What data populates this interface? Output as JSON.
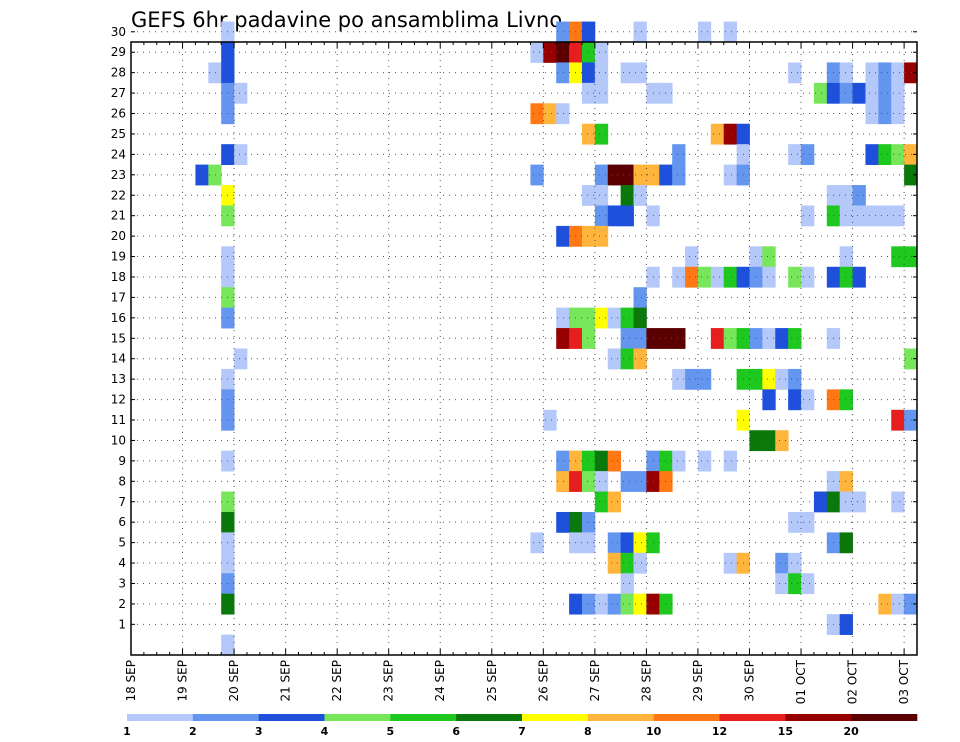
{
  "chart_data": {
    "type": "heatmap",
    "title": "GEFS 6hr padavine po ansamblima Livno",
    "x_tick_labels": [
      "18 SEP",
      "19 SEP",
      "20 SEP",
      "21 SEP",
      "22 SEP",
      "23 SEP",
      "24 SEP",
      "25 SEP",
      "26 SEP",
      "27 SEP",
      "28 SEP",
      "29 SEP",
      "30 SEP",
      "01 OCT",
      "02 OCT",
      "03 OCT"
    ],
    "y_tick_labels": [
      "1",
      "2",
      "3",
      "4",
      "5",
      "6",
      "7",
      "8",
      "9",
      "10",
      "11",
      "12",
      "13",
      "14",
      "15",
      "16",
      "17",
      "18",
      "19",
      "20",
      "21",
      "22",
      "23",
      "24",
      "25",
      "26",
      "27",
      "28",
      "29",
      "30"
    ],
    "x_range_steps": [
      0,
      61
    ],
    "y_range_members": [
      0,
      30
    ],
    "grid": true,
    "colorbar": {
      "labels": [
        "1",
        "2",
        "3",
        "4",
        "5",
        "6",
        "7",
        "8",
        "10",
        "12",
        "15",
        "20"
      ],
      "colors": [
        "#b4c8fa",
        "#6496f0",
        "#1e50dc",
        "#78e65a",
        "#1ec81e",
        "#0a780a",
        "#ffff00",
        "#ffb43c",
        "#ff7814",
        "#e61e1e",
        "#960000",
        "#5a0000"
      ]
    },
    "cells_note": "each entry: [member, step_index_from_18_SEP_00z_in_6h_steps, color_class_0_to_11]",
    "cells": [
      [
        30,
        7,
        0
      ],
      [
        29,
        7,
        2
      ],
      [
        28,
        6,
        0
      ],
      [
        28,
        7,
        2
      ],
      [
        27,
        7,
        1
      ],
      [
        27,
        8,
        0
      ],
      [
        26,
        7,
        1
      ],
      [
        24,
        7,
        2
      ],
      [
        24,
        8,
        0
      ],
      [
        23,
        5,
        2
      ],
      [
        23,
        6,
        3
      ],
      [
        22,
        7,
        6
      ],
      [
        21,
        7,
        3
      ],
      [
        19,
        7,
        0
      ],
      [
        18,
        7,
        0
      ],
      [
        17,
        7,
        3
      ],
      [
        16,
        7,
        1
      ],
      [
        14,
        8,
        0
      ],
      [
        13,
        7,
        0
      ],
      [
        12,
        7,
        1
      ],
      [
        11,
        7,
        1
      ],
      [
        9,
        7,
        0
      ],
      [
        7,
        7,
        3
      ],
      [
        6,
        7,
        5
      ],
      [
        5,
        7,
        0
      ],
      [
        4,
        7,
        0
      ],
      [
        3,
        7,
        1
      ],
      [
        2,
        7,
        5
      ],
      [
        0,
        7,
        0
      ],
      [
        30,
        33,
        1
      ],
      [
        30,
        34,
        8
      ],
      [
        30,
        35,
        2
      ],
      [
        30,
        39,
        0
      ],
      [
        30,
        44,
        0
      ],
      [
        30,
        46,
        0
      ],
      [
        29,
        31,
        0
      ],
      [
        29,
        32,
        10
      ],
      [
        29,
        33,
        11
      ],
      [
        29,
        34,
        9
      ],
      [
        29,
        35,
        4
      ],
      [
        29,
        36,
        0
      ],
      [
        28,
        33,
        1
      ],
      [
        28,
        34,
        6
      ],
      [
        28,
        35,
        2
      ],
      [
        28,
        36,
        0
      ],
      [
        28,
        38,
        0
      ],
      [
        28,
        39,
        0
      ],
      [
        28,
        51,
        0
      ],
      [
        28,
        54,
        1
      ],
      [
        28,
        55,
        0
      ],
      [
        28,
        57,
        0
      ],
      [
        28,
        58,
        1
      ],
      [
        28,
        59,
        0
      ],
      [
        28,
        60,
        10
      ],
      [
        27,
        35,
        0
      ],
      [
        27,
        36,
        0
      ],
      [
        27,
        40,
        0
      ],
      [
        27,
        41,
        0
      ],
      [
        27,
        53,
        3
      ],
      [
        27,
        54,
        2
      ],
      [
        27,
        55,
        1
      ],
      [
        27,
        56,
        2
      ],
      [
        27,
        57,
        0
      ],
      [
        27,
        58,
        1
      ],
      [
        27,
        59,
        0
      ],
      [
        26,
        31,
        8
      ],
      [
        26,
        32,
        7
      ],
      [
        26,
        33,
        0
      ],
      [
        26,
        57,
        0
      ],
      [
        26,
        58,
        1
      ],
      [
        26,
        59,
        0
      ],
      [
        25,
        35,
        7
      ],
      [
        25,
        36,
        4
      ],
      [
        25,
        45,
        7
      ],
      [
        25,
        46,
        10
      ],
      [
        25,
        47,
        2
      ],
      [
        24,
        42,
        1
      ],
      [
        24,
        47,
        0
      ],
      [
        24,
        51,
        0
      ],
      [
        24,
        52,
        1
      ],
      [
        24,
        57,
        2
      ],
      [
        24,
        58,
        4
      ],
      [
        24,
        59,
        3
      ],
      [
        24,
        60,
        7
      ],
      [
        23,
        31,
        1
      ],
      [
        23,
        36,
        1
      ],
      [
        23,
        37,
        11
      ],
      [
        23,
        38,
        11
      ],
      [
        23,
        39,
        7
      ],
      [
        23,
        40,
        7
      ],
      [
        23,
        41,
        2
      ],
      [
        23,
        42,
        1
      ],
      [
        23,
        46,
        0
      ],
      [
        23,
        47,
        1
      ],
      [
        23,
        60,
        5
      ],
      [
        22,
        35,
        0
      ],
      [
        22,
        36,
        0
      ],
      [
        22,
        38,
        5
      ],
      [
        22,
        39,
        0
      ],
      [
        22,
        54,
        0
      ],
      [
        22,
        55,
        0
      ],
      [
        22,
        56,
        1
      ],
      [
        21,
        36,
        1
      ],
      [
        21,
        37,
        2
      ],
      [
        21,
        38,
        2
      ],
      [
        21,
        40,
        0
      ],
      [
        21,
        52,
        0
      ],
      [
        21,
        54,
        4
      ],
      [
        21,
        55,
        0
      ],
      [
        21,
        56,
        0
      ],
      [
        21,
        57,
        0
      ],
      [
        21,
        58,
        0
      ],
      [
        21,
        59,
        0
      ],
      [
        20,
        33,
        2
      ],
      [
        20,
        34,
        8
      ],
      [
        20,
        35,
        7
      ],
      [
        20,
        36,
        7
      ],
      [
        19,
        43,
        0
      ],
      [
        19,
        48,
        0
      ],
      [
        19,
        49,
        3
      ],
      [
        19,
        55,
        0
      ],
      [
        19,
        59,
        4
      ],
      [
        19,
        60,
        4
      ],
      [
        18,
        40,
        0
      ],
      [
        18,
        42,
        0
      ],
      [
        18,
        43,
        8
      ],
      [
        18,
        44,
        3
      ],
      [
        18,
        45,
        0
      ],
      [
        18,
        46,
        4
      ],
      [
        18,
        47,
        2
      ],
      [
        18,
        48,
        1
      ],
      [
        18,
        49,
        0
      ],
      [
        18,
        51,
        3
      ],
      [
        18,
        52,
        0
      ],
      [
        18,
        54,
        2
      ],
      [
        18,
        55,
        4
      ],
      [
        18,
        56,
        2
      ],
      [
        17,
        39,
        1
      ],
      [
        16,
        33,
        0
      ],
      [
        16,
        34,
        3
      ],
      [
        16,
        35,
        3
      ],
      [
        16,
        36,
        6
      ],
      [
        16,
        37,
        0
      ],
      [
        16,
        38,
        4
      ],
      [
        16,
        39,
        5
      ],
      [
        15,
        33,
        10
      ],
      [
        15,
        34,
        9
      ],
      [
        15,
        35,
        3
      ],
      [
        15,
        38,
        1
      ],
      [
        15,
        39,
        1
      ],
      [
        15,
        40,
        11
      ],
      [
        15,
        41,
        11
      ],
      [
        15,
        42,
        11
      ],
      [
        15,
        45,
        9
      ],
      [
        15,
        46,
        3
      ],
      [
        15,
        47,
        4
      ],
      [
        15,
        48,
        1
      ],
      [
        15,
        49,
        0
      ],
      [
        15,
        50,
        2
      ],
      [
        15,
        51,
        4
      ],
      [
        15,
        54,
        0
      ],
      [
        14,
        37,
        0
      ],
      [
        14,
        38,
        4
      ],
      [
        14,
        39,
        7
      ],
      [
        14,
        60,
        3
      ],
      [
        13,
        42,
        0
      ],
      [
        13,
        43,
        1
      ],
      [
        13,
        44,
        1
      ],
      [
        13,
        47,
        4
      ],
      [
        13,
        48,
        4
      ],
      [
        13,
        49,
        6
      ],
      [
        13,
        50,
        0
      ],
      [
        13,
        51,
        1
      ],
      [
        12,
        49,
        2
      ],
      [
        12,
        51,
        2
      ],
      [
        12,
        52,
        0
      ],
      [
        12,
        54,
        8
      ],
      [
        12,
        55,
        4
      ],
      [
        11,
        32,
        0
      ],
      [
        11,
        47,
        6
      ],
      [
        11,
        59,
        9
      ],
      [
        11,
        60,
        1
      ],
      [
        10,
        48,
        5
      ],
      [
        10,
        49,
        5
      ],
      [
        10,
        50,
        7
      ],
      [
        9,
        33,
        1
      ],
      [
        9,
        34,
        7
      ],
      [
        9,
        35,
        4
      ],
      [
        9,
        36,
        5
      ],
      [
        9,
        37,
        8
      ],
      [
        9,
        40,
        1
      ],
      [
        9,
        41,
        4
      ],
      [
        9,
        42,
        0
      ],
      [
        9,
        44,
        0
      ],
      [
        9,
        46,
        0
      ],
      [
        8,
        33,
        7
      ],
      [
        8,
        34,
        9
      ],
      [
        8,
        35,
        3
      ],
      [
        8,
        36,
        0
      ],
      [
        8,
        38,
        1
      ],
      [
        8,
        39,
        1
      ],
      [
        8,
        40,
        10
      ],
      [
        8,
        41,
        8
      ],
      [
        8,
        54,
        0
      ],
      [
        8,
        55,
        7
      ],
      [
        7,
        36,
        4
      ],
      [
        7,
        37,
        7
      ],
      [
        7,
        53,
        2
      ],
      [
        7,
        54,
        5
      ],
      [
        7,
        55,
        0
      ],
      [
        7,
        56,
        0
      ],
      [
        7,
        59,
        0
      ],
      [
        6,
        33,
        2
      ],
      [
        6,
        34,
        5
      ],
      [
        6,
        35,
        1
      ],
      [
        6,
        51,
        0
      ],
      [
        6,
        52,
        0
      ],
      [
        5,
        31,
        0
      ],
      [
        5,
        34,
        0
      ],
      [
        5,
        35,
        0
      ],
      [
        5,
        37,
        1
      ],
      [
        5,
        38,
        2
      ],
      [
        5,
        39,
        6
      ],
      [
        5,
        40,
        4
      ],
      [
        5,
        54,
        1
      ],
      [
        5,
        55,
        5
      ],
      [
        4,
        37,
        7
      ],
      [
        4,
        38,
        4
      ],
      [
        4,
        39,
        0
      ],
      [
        4,
        46,
        0
      ],
      [
        4,
        47,
        7
      ],
      [
        4,
        50,
        1
      ],
      [
        4,
        51,
        0
      ],
      [
        3,
        38,
        0
      ],
      [
        3,
        50,
        0
      ],
      [
        3,
        51,
        4
      ],
      [
        3,
        52,
        0
      ],
      [
        2,
        34,
        2
      ],
      [
        2,
        35,
        1
      ],
      [
        2,
        36,
        0
      ],
      [
        2,
        37,
        1
      ],
      [
        2,
        38,
        3
      ],
      [
        2,
        39,
        6
      ],
      [
        2,
        40,
        10
      ],
      [
        2,
        41,
        4
      ],
      [
        2,
        58,
        7
      ],
      [
        2,
        59,
        0
      ],
      [
        2,
        60,
        1
      ],
      [
        1,
        54,
        0
      ],
      [
        1,
        55,
        2
      ]
    ]
  }
}
